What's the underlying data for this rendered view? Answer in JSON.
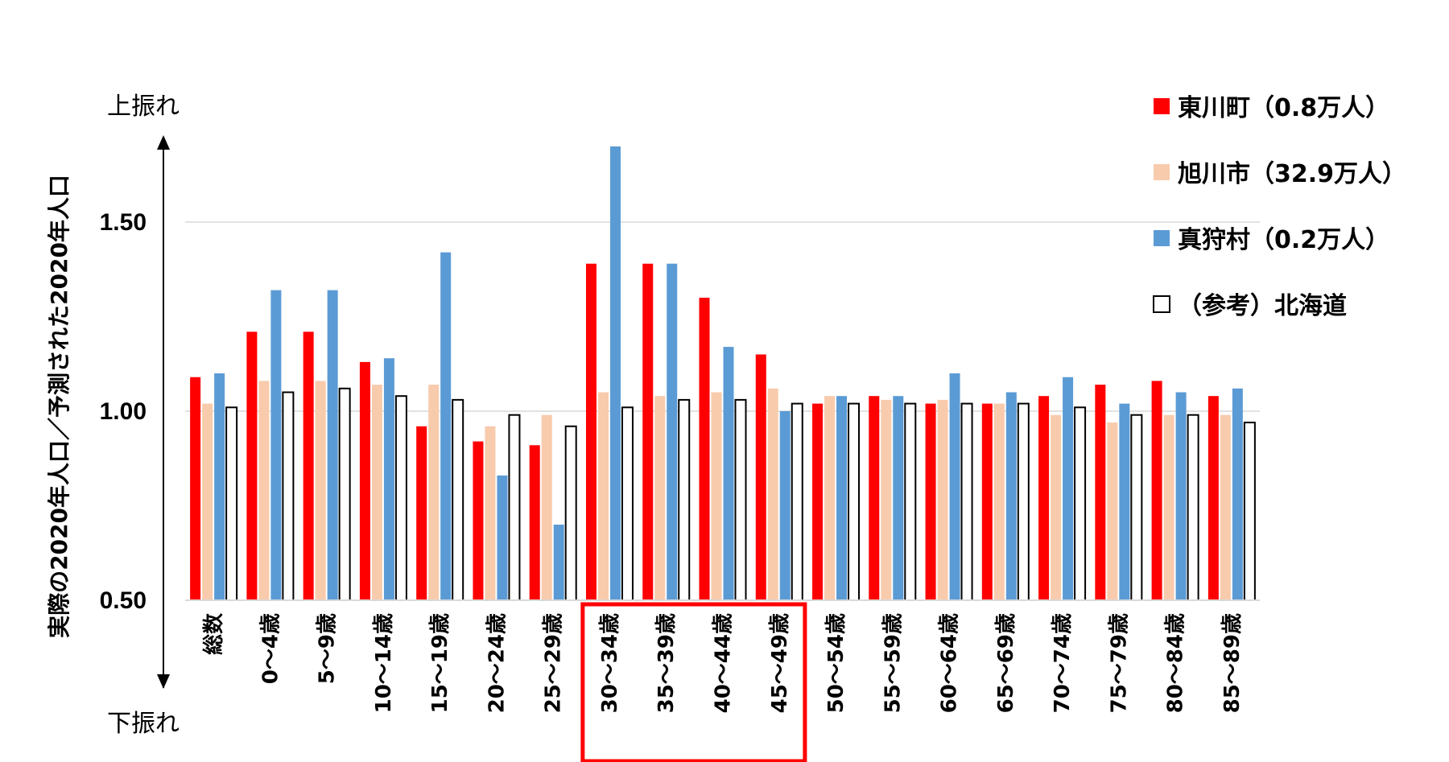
{
  "chart_data": {
    "type": "bar",
    "ylabel": "実際の2020年人口／予測された2020年人口",
    "upper_hint": "上振れ",
    "lower_hint": "下振れ",
    "ylim": [
      0.5,
      1.7
    ],
    "yticks": [
      {
        "value": 0.5,
        "label": "0.50"
      },
      {
        "value": 1.0,
        "label": "1.00"
      },
      {
        "value": 1.5,
        "label": "1.50"
      }
    ],
    "grid": true,
    "legend_position": "top-right",
    "categories": [
      "総数",
      "0～4歳",
      "5～9歳",
      "10～14歳",
      "15～19歳",
      "20～24歳",
      "25～29歳",
      "30～34歳",
      "35～39歳",
      "40～44歳",
      "45～49歳",
      "50～54歳",
      "55～59歳",
      "60～64歳",
      "65～69歳",
      "70～74歳",
      "75～79歳",
      "80～84歳",
      "85～89歳"
    ],
    "highlighted_categories": [
      "30～34歳",
      "35～39歳",
      "40～44歳",
      "45～49歳"
    ],
    "highlight_color": "#ff0000",
    "series": [
      {
        "name": "東川町（0.8万人）",
        "color": "#ff0000",
        "outline": false,
        "values": [
          1.09,
          1.21,
          1.21,
          1.13,
          0.96,
          0.92,
          0.91,
          1.39,
          1.39,
          1.3,
          1.15,
          1.02,
          1.04,
          1.02,
          1.02,
          1.04,
          1.07,
          1.08,
          1.04
        ]
      },
      {
        "name": "旭川市（32.9万人）",
        "color": "#f8cbad",
        "outline": false,
        "values": [
          1.02,
          1.08,
          1.08,
          1.07,
          1.07,
          0.96,
          0.99,
          1.05,
          1.04,
          1.05,
          1.06,
          1.04,
          1.03,
          1.03,
          1.02,
          0.99,
          0.97,
          0.99,
          0.99
        ]
      },
      {
        "name": "真狩村（0.2万人）",
        "color": "#5b9bd5",
        "outline": false,
        "values": [
          1.1,
          1.32,
          1.32,
          1.14,
          1.42,
          0.83,
          0.7,
          1.7,
          1.39,
          1.17,
          1.0,
          1.04,
          1.04,
          1.1,
          1.05,
          1.09,
          1.02,
          1.05,
          1.06
        ]
      },
      {
        "name": "（参考）北海道",
        "color": "#ffffff",
        "outline": true,
        "values": [
          1.01,
          1.05,
          1.06,
          1.04,
          1.03,
          0.99,
          0.96,
          1.01,
          1.03,
          1.03,
          1.02,
          1.02,
          1.02,
          1.02,
          1.02,
          1.01,
          0.99,
          0.99,
          0.97
        ]
      }
    ]
  }
}
